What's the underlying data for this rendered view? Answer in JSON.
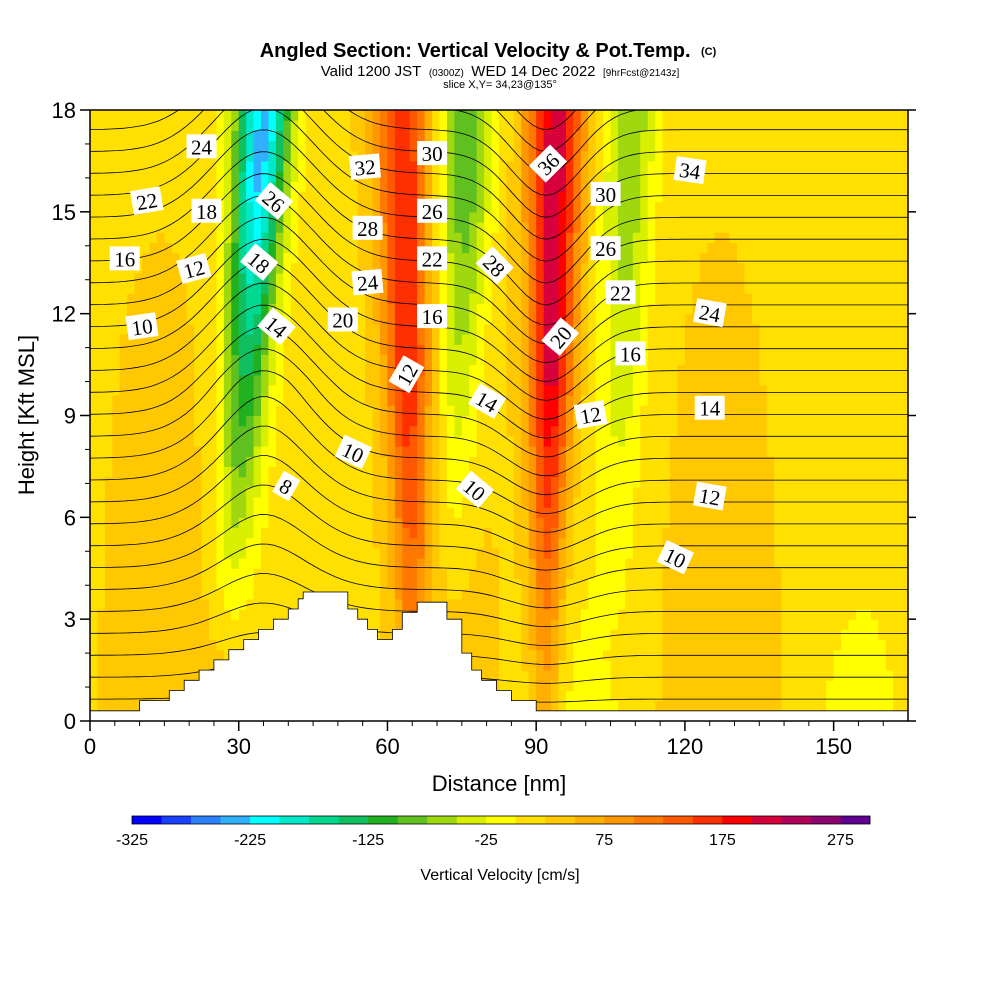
{
  "title": {
    "main": "Angled Section: Vertical Velocity & Pot.Temp.",
    "main_suffix": "(C)",
    "valid_prefix": "Valid 1200 JST",
    "valid_utc": "(0300Z)",
    "valid_date": "WED 14 Dec 2022",
    "forecast": "[9hrFcst@2143z]",
    "slice": "slice X,Y= 34,23@135°"
  },
  "chart_data": {
    "type": "heatmap",
    "xlabel": "Distance [nm]",
    "ylabel": "Height [Kft MSL]",
    "xlim": [
      0,
      165
    ],
    "ylim": [
      0,
      18
    ],
    "x_ticks": [
      "0",
      "30",
      "60",
      "90",
      "120",
      "150"
    ],
    "y_ticks": [
      "0",
      "3",
      "6",
      "9",
      "12",
      "15",
      "18"
    ],
    "field": "Vertical Velocity [cm/s]",
    "colorbar": {
      "title": "Vertical Velocity [cm/s]",
      "min": -325,
      "max": 300,
      "step": 25,
      "tick_labels": [
        "-325",
        "-225",
        "-125",
        "-25",
        "75",
        "175",
        "275"
      ],
      "colors": [
        "#0000ff",
        "#1840ff",
        "#2c80ff",
        "#30b0ff",
        "#00ffff",
        "#00e8c8",
        "#00d890",
        "#10c060",
        "#20b020",
        "#60c020",
        "#a0d810",
        "#d8f000",
        "#ffff00",
        "#ffe000",
        "#ffc800",
        "#ffb000",
        "#ff9800",
        "#ff7800",
        "#ff5800",
        "#ff3000",
        "#ff0000",
        "#d8003c",
        "#b00058",
        "#8c0070",
        "#600090"
      ]
    },
    "updraft_columns": [
      {
        "center_nm": 65,
        "core_top_kft": 18,
        "peak_cm_s": 150
      },
      {
        "center_nm": 92,
        "core_top_kft": 18,
        "peak_cm_s": 200
      }
    ],
    "downdraft_columns": [
      {
        "center_nm": 35,
        "peak_cm_s": -250
      },
      {
        "center_nm": 76,
        "peak_cm_s": -120
      },
      {
        "center_nm": 109,
        "peak_cm_s": -90
      }
    ],
    "contour_field": "Potential Temperature (C)",
    "contour_labels": [
      {
        "text": "24",
        "x": 22.5,
        "y": 16.9,
        "angle": 0
      },
      {
        "text": "22",
        "x": 11.5,
        "y": 15.3,
        "angle": -10
      },
      {
        "text": "18",
        "x": 23.5,
        "y": 15.0,
        "angle": 0
      },
      {
        "text": "26",
        "x": 37,
        "y": 15.3,
        "angle": 40
      },
      {
        "text": "16",
        "x": 7,
        "y": 13.6,
        "angle": 0
      },
      {
        "text": "12",
        "x": 21,
        "y": 13.3,
        "angle": -15
      },
      {
        "text": "18",
        "x": 34,
        "y": 13.5,
        "angle": 40
      },
      {
        "text": "10",
        "x": 10.5,
        "y": 11.6,
        "angle": -8
      },
      {
        "text": "14",
        "x": 37.5,
        "y": 11.6,
        "angle": 40
      },
      {
        "text": "32",
        "x": 55.5,
        "y": 16.3,
        "angle": -5
      },
      {
        "text": "28",
        "x": 56,
        "y": 14.5,
        "angle": 0
      },
      {
        "text": "24",
        "x": 56,
        "y": 12.9,
        "angle": -5
      },
      {
        "text": "20",
        "x": 51,
        "y": 11.8,
        "angle": 0
      },
      {
        "text": "30",
        "x": 69,
        "y": 16.7,
        "angle": 0
      },
      {
        "text": "26",
        "x": 69,
        "y": 15.0,
        "angle": 0
      },
      {
        "text": "22",
        "x": 69,
        "y": 13.6,
        "angle": 0
      },
      {
        "text": "16",
        "x": 69,
        "y": 11.9,
        "angle": 0
      },
      {
        "text": "12",
        "x": 64,
        "y": 10.2,
        "angle": -60
      },
      {
        "text": "28",
        "x": 81.5,
        "y": 13.4,
        "angle": 45
      },
      {
        "text": "14",
        "x": 80,
        "y": 9.4,
        "angle": 30
      },
      {
        "text": "10",
        "x": 77.5,
        "y": 6.8,
        "angle": 40
      },
      {
        "text": "10",
        "x": 53,
        "y": 7.9,
        "angle": 25
      },
      {
        "text": "8",
        "x": 39.5,
        "y": 6.9,
        "angle": 30
      },
      {
        "text": "36",
        "x": 92.5,
        "y": 16.4,
        "angle": -45
      },
      {
        "text": "30",
        "x": 104,
        "y": 15.5,
        "angle": 0
      },
      {
        "text": "26",
        "x": 104,
        "y": 13.9,
        "angle": 0
      },
      {
        "text": "22",
        "x": 107,
        "y": 12.6,
        "angle": 0
      },
      {
        "text": "20",
        "x": 95,
        "y": 11.3,
        "angle": -50
      },
      {
        "text": "16",
        "x": 109,
        "y": 10.8,
        "angle": 0
      },
      {
        "text": "12",
        "x": 101,
        "y": 9.0,
        "angle": -10
      },
      {
        "text": "34",
        "x": 121,
        "y": 16.2,
        "angle": 8
      },
      {
        "text": "24",
        "x": 125,
        "y": 12.0,
        "angle": 10
      },
      {
        "text": "14",
        "x": 125,
        "y": 9.2,
        "angle": 0
      },
      {
        "text": "12",
        "x": 125,
        "y": 6.6,
        "angle": 10
      },
      {
        "text": "10",
        "x": 118,
        "y": 4.8,
        "angle": 25
      }
    ],
    "terrain_profile": [
      [
        0,
        0.3
      ],
      [
        10,
        0.3
      ],
      [
        10,
        0.6
      ],
      [
        16,
        0.6
      ],
      [
        16,
        0.9
      ],
      [
        19,
        0.9
      ],
      [
        19,
        1.2
      ],
      [
        22,
        1.2
      ],
      [
        22,
        1.5
      ],
      [
        25,
        1.5
      ],
      [
        25,
        1.8
      ],
      [
        28,
        1.8
      ],
      [
        28,
        2.1
      ],
      [
        31,
        2.1
      ],
      [
        31,
        2.4
      ],
      [
        34,
        2.4
      ],
      [
        34,
        2.7
      ],
      [
        37,
        2.7
      ],
      [
        37,
        3.0
      ],
      [
        40,
        3.0
      ],
      [
        40,
        3.3
      ],
      [
        42,
        3.3
      ],
      [
        42,
        3.6
      ],
      [
        43,
        3.6
      ],
      [
        43,
        3.8
      ],
      [
        52,
        3.8
      ],
      [
        52,
        3.3
      ],
      [
        54,
        3.3
      ],
      [
        54,
        3.0
      ],
      [
        56,
        3.0
      ],
      [
        56,
        2.7
      ],
      [
        58,
        2.7
      ],
      [
        58,
        2.4
      ],
      [
        61,
        2.4
      ],
      [
        61,
        2.7
      ],
      [
        63,
        2.7
      ],
      [
        63,
        3.2
      ],
      [
        66,
        3.2
      ],
      [
        66,
        3.5
      ],
      [
        72,
        3.5
      ],
      [
        72,
        3.0
      ],
      [
        75,
        3.0
      ],
      [
        75,
        2.0
      ],
      [
        77,
        2.0
      ],
      [
        77,
        1.5
      ],
      [
        79,
        1.5
      ],
      [
        79,
        1.2
      ],
      [
        82,
        1.2
      ],
      [
        82,
        0.9
      ],
      [
        85,
        0.9
      ],
      [
        85,
        0.6
      ],
      [
        90,
        0.6
      ],
      [
        90,
        0.3
      ],
      [
        165,
        0.3
      ]
    ]
  }
}
